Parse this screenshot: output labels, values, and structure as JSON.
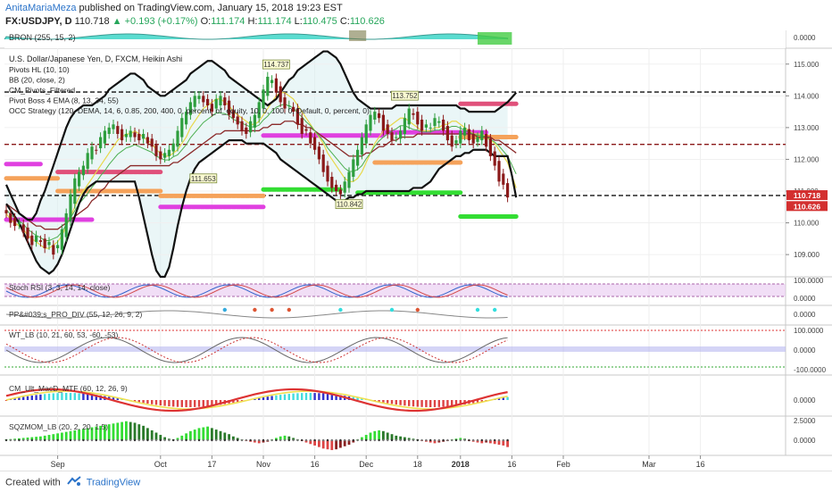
{
  "header": {
    "author": "AnitaMariaMeza",
    "published": "published on TradingView.com, January 15, 2018 19:23 EST",
    "symbol": "FX:USDJPY, D",
    "price": "110.718",
    "change": "+0.193 (+0.17%)",
    "o_label": "O:",
    "o_value": "111.174",
    "h_label": "H:",
    "h_value": "111.174",
    "l_label": "L:",
    "l_value": "110.475",
    "c_label": "C:",
    "c_value": "110.626"
  },
  "footer": {
    "created_with": "Created with",
    "brand": "TradingView"
  },
  "colors": {
    "bull": "#2e9e3e",
    "bear": "#8b1a1a",
    "bb": "#111111",
    "ema_fast": "#e8d84a",
    "ema_mid": "#4caf50",
    "ema_slow": "#8b2a2a",
    "pivot_magenta": "#e040e0",
    "pivot_orange": "#f5a25a",
    "pivot_green": "#33dd33",
    "pivot_pink": "#e0507a",
    "cloud": "#d8eef0",
    "up_box": "#26a65b",
    "down_box": "#d32f2f"
  },
  "chart_data": [
    {
      "type": "candlestick",
      "title": "U.S. Dollar/Japanese Yen, D, FXCM, Heikin Ashi",
      "indicator_labels": [
        "Pivots HL (10, 10)",
        "BB (20, close, 2)",
        "CM_Pivots_Filtered",
        "Pivot Boss 4 EMA (8, 13, 34, 55)",
        "OCC Strategy (120, DEMA, 14, 6, 0.85, 200, 400, 0, percent_of_equity, 10, 0, 100, 0, Default, 0, percent, 0)"
      ],
      "y_ticks": [
        "115.000",
        "114.000",
        "113.000",
        "112.000",
        "111.000",
        "110.000",
        "109.000"
      ],
      "ylim": [
        108.3,
        115.5
      ],
      "x_ticks": [
        "Sep",
        "Oct",
        "17",
        "Nov",
        "16",
        "Dec",
        "18",
        "2018",
        "16",
        "Feb",
        "Mar",
        "16"
      ],
      "x_tick_index": [
        12,
        36,
        48,
        60,
        72,
        84,
        96,
        106,
        118,
        130,
        150,
        162
      ],
      "price_labels": [
        {
          "text": "110.718",
          "value": 110.718,
          "color": "#d32f2f"
        },
        {
          "text": "110.626",
          "value": 110.626,
          "color": "#d32f2f"
        }
      ],
      "annotations": [
        {
          "text": "114.737",
          "index": 63,
          "value": 114.737,
          "pos": "above"
        },
        {
          "text": "113.752",
          "index": 93,
          "value": 113.752,
          "pos": "above"
        },
        {
          "text": "111.653",
          "index": 46,
          "value": 111.653,
          "pos": "below"
        },
        {
          "text": "110.842",
          "index": 80,
          "value": 110.842,
          "pos": "below"
        }
      ],
      "hlines": [
        {
          "value": 114.12,
          "color": "#111111",
          "style": "dash"
        },
        {
          "value": 112.47,
          "color": "#8b1a1a",
          "style": "dash"
        },
        {
          "value": 110.86,
          "color": "#111111",
          "style": "dash"
        }
      ],
      "pivot_segments": [
        {
          "start": 0,
          "end": 8,
          "value": 111.85,
          "color": "#e040e0"
        },
        {
          "start": 0,
          "end": 12,
          "value": 111.4,
          "color": "#f5a25a"
        },
        {
          "start": 12,
          "end": 36,
          "value": 111.6,
          "color": "#e0507a"
        },
        {
          "start": 12,
          "end": 36,
          "value": 111.0,
          "color": "#f5a25a"
        },
        {
          "start": 0,
          "end": 20,
          "value": 110.1,
          "color": "#e040e0"
        },
        {
          "start": 36,
          "end": 60,
          "value": 110.5,
          "color": "#e040e0"
        },
        {
          "start": 36,
          "end": 60,
          "value": 110.85,
          "color": "#f5a25a"
        },
        {
          "start": 60,
          "end": 88,
          "value": 112.75,
          "color": "#e040e0"
        },
        {
          "start": 60,
          "end": 78,
          "value": 111.05,
          "color": "#33dd33"
        },
        {
          "start": 86,
          "end": 106,
          "value": 111.9,
          "color": "#f5a25a"
        },
        {
          "start": 82,
          "end": 106,
          "value": 110.95,
          "color": "#33dd33"
        },
        {
          "start": 88,
          "end": 112,
          "value": 112.85,
          "color": "#e040e0"
        },
        {
          "start": 106,
          "end": 119,
          "value": 113.75,
          "color": "#e0507a"
        },
        {
          "start": 106,
          "end": 119,
          "value": 112.7,
          "color": "#f5a25a"
        },
        {
          "start": 106,
          "end": 119,
          "value": 110.2,
          "color": "#33dd33"
        }
      ],
      "bb_upper": [
        111.2,
        110.9,
        110.6,
        110.3,
        110.2,
        110.1,
        110.1,
        110.3,
        110.7,
        111.0,
        111.4,
        111.8,
        112.2,
        112.6,
        113.0,
        113.3,
        113.5,
        113.6,
        113.7,
        113.7,
        113.7,
        113.8,
        113.9,
        114.0,
        114.2,
        114.3,
        114.4,
        114.5,
        114.6,
        114.7,
        114.7,
        114.6,
        114.5,
        114.3,
        114.2,
        114.1,
        114.0,
        114.0,
        114.1,
        114.2,
        114.3,
        114.4,
        114.5,
        114.7,
        114.8,
        114.9,
        115.0,
        115.1,
        115.1,
        115.0,
        114.9,
        114.8,
        114.6,
        114.5,
        114.4,
        114.3,
        114.2,
        114.1,
        114.0,
        113.9,
        113.8,
        113.7,
        113.8,
        113.9,
        114.1,
        114.3,
        114.5,
        114.6,
        114.8,
        114.9,
        115.0,
        115.1,
        115.2,
        115.3,
        115.4,
        115.4,
        115.3,
        115.2,
        115.0,
        114.7,
        114.4,
        114.1,
        113.9,
        113.8,
        113.7,
        113.6,
        113.6,
        113.6,
        113.6,
        113.6,
        113.6,
        113.7,
        113.7,
        113.7,
        113.7,
        113.7,
        113.7,
        113.7,
        113.7,
        113.7,
        113.7,
        113.7,
        113.7,
        113.7,
        113.7,
        113.7,
        113.6,
        113.6,
        113.5,
        113.5,
        113.5,
        113.5,
        113.5,
        113.5,
        113.5,
        113.6,
        113.7,
        113.8,
        113.95,
        114.1
      ],
      "bb_lower": [
        110.6,
        110.4,
        110.2,
        110.0,
        109.7,
        109.4,
        109.1,
        108.8,
        108.6,
        108.5,
        108.4,
        108.5,
        108.7,
        109.0,
        109.4,
        109.8,
        110.2,
        110.6,
        110.9,
        111.1,
        111.2,
        111.3,
        111.3,
        111.3,
        111.3,
        111.3,
        111.3,
        111.3,
        111.3,
        111.3,
        111.3,
        110.8,
        110.2,
        109.6,
        109.0,
        108.5,
        108.3,
        108.3,
        108.6,
        109.2,
        109.9,
        110.5,
        111.0,
        111.4,
        111.7,
        111.9,
        112.0,
        112.1,
        112.2,
        112.3,
        112.4,
        112.5,
        112.6,
        112.6,
        112.6,
        112.6,
        112.5,
        112.5,
        112.5,
        112.5,
        112.5,
        112.4,
        112.3,
        112.2,
        112.0,
        111.9,
        111.8,
        111.7,
        111.6,
        111.5,
        111.4,
        111.3,
        111.2,
        111.1,
        111.0,
        110.9,
        110.8,
        110.7,
        110.7,
        110.7,
        110.8,
        110.8,
        110.9,
        110.9,
        111.0,
        111.0,
        111.0,
        111.0,
        111.0,
        111.0,
        111.0,
        111.0,
        111.0,
        111.0,
        111.0,
        111.1,
        111.1,
        111.1,
        111.2,
        111.3,
        111.5,
        111.7,
        111.8,
        111.9,
        112.0,
        112.1,
        112.1,
        112.2,
        112.2,
        112.3,
        112.3,
        112.3,
        112.3,
        112.2,
        112.1,
        112.1,
        112.1,
        112.1,
        111.5,
        110.8
      ],
      "ema_fast": [
        110.3,
        110.1,
        110.0,
        109.9,
        109.8,
        109.6,
        109.5,
        109.4,
        109.3,
        109.2,
        109.2,
        109.3,
        109.4,
        109.6,
        109.9,
        110.2,
        110.5,
        110.8,
        111.0,
        111.2,
        111.4,
        111.6,
        111.8,
        112.0,
        112.2,
        112.4,
        112.6,
        112.7,
        112.8,
        112.8,
        112.9,
        112.8,
        112.7,
        112.6,
        112.5,
        112.3,
        112.2,
        112.1,
        112.1,
        112.2,
        112.3,
        112.5,
        112.7,
        113.0,
        113.2,
        113.4,
        113.6,
        113.7,
        113.8,
        113.9,
        113.9,
        113.8,
        113.7,
        113.5,
        113.4,
        113.3,
        113.2,
        113.1,
        113.1,
        113.2,
        113.4,
        113.6,
        113.8,
        114.0,
        114.1,
        114.1,
        114.0,
        113.9,
        113.7,
        113.5,
        113.3,
        113.1,
        112.9,
        112.7,
        112.5,
        112.2,
        112.0,
        111.8,
        111.6,
        111.4,
        111.3,
        111.3,
        111.4,
        111.6,
        111.9,
        112.2,
        112.5,
        112.7,
        112.9,
        113.0,
        113.1,
        113.2,
        113.3,
        113.3,
        113.2,
        113.1,
        113.0,
        112.9,
        112.9,
        112.9,
        113.0,
        113.0,
        113.1,
        113.1,
        113.2,
        113.2,
        113.1,
        113.0,
        112.9,
        112.8,
        112.8,
        112.8,
        112.7,
        112.6,
        112.5,
        112.3,
        112.1,
        111.9,
        111.5,
        111.1
      ],
      "ema_slow": [
        110.6,
        110.5,
        110.4,
        110.3,
        110.2,
        110.1,
        110.0,
        109.9,
        109.9,
        109.8,
        109.8,
        109.8,
        109.8,
        109.9,
        110.0,
        110.1,
        110.2,
        110.3,
        110.4,
        110.5,
        110.7,
        110.8,
        111.0,
        111.1,
        111.3,
        111.4,
        111.5,
        111.6,
        111.7,
        111.8,
        111.8,
        111.8,
        111.8,
        111.8,
        111.8,
        111.8,
        111.8,
        111.8,
        111.8,
        111.9,
        111.9,
        112.0,
        112.1,
        112.2,
        112.3,
        112.4,
        112.5,
        112.6,
        112.7,
        112.8,
        112.8,
        112.9,
        112.9,
        112.9,
        112.9,
        112.9,
        112.9,
        112.9,
        112.9,
        112.9,
        113.0,
        113.0,
        113.1,
        113.1,
        113.1,
        113.2,
        113.2,
        113.2,
        113.1,
        113.1,
        113.0,
        113.0,
        112.9,
        112.8,
        112.7,
        112.6,
        112.5,
        112.4,
        112.3,
        112.2,
        112.1,
        112.1,
        112.1,
        112.1,
        112.2,
        112.2,
        112.3,
        112.4,
        112.4,
        112.5,
        112.6,
        112.6,
        112.7,
        112.7,
        112.7,
        112.7,
        112.8,
        112.8,
        112.8,
        112.8,
        112.8,
        112.8,
        112.8,
        112.8,
        112.8,
        112.8,
        112.8,
        112.8,
        112.8,
        112.8,
        112.7,
        112.7,
        112.7,
        112.7,
        112.6,
        112.6,
        112.5,
        112.4,
        112.3,
        112.2
      ],
      "close": [
        110.3,
        110.0,
        109.9,
        110.0,
        109.7,
        109.5,
        109.3,
        109.6,
        109.4,
        109.2,
        109.4,
        109.0,
        109.3,
        109.8,
        110.3,
        110.9,
        111.4,
        111.6,
        111.8,
        112.2,
        112.4,
        112.3,
        112.7,
        112.9,
        113.0,
        113.1,
        112.8,
        112.6,
        112.8,
        112.9,
        112.7,
        112.6,
        112.8,
        112.5,
        112.4,
        112.1,
        112.0,
        112.2,
        112.3,
        112.5,
        112.9,
        113.3,
        113.5,
        113.8,
        114.0,
        114.0,
        113.8,
        113.7,
        113.5,
        113.9,
        114.0,
        113.7,
        113.4,
        113.3,
        113.1,
        112.9,
        112.8,
        113.2,
        113.4,
        113.8,
        114.2,
        114.6,
        114.5,
        114.1,
        113.8,
        113.6,
        113.7,
        113.5,
        113.1,
        112.8,
        112.9,
        112.5,
        112.3,
        112.0,
        111.6,
        111.3,
        111.1,
        111.0,
        110.9,
        111.3,
        111.6,
        112.0,
        112.3,
        112.7,
        113.1,
        113.4,
        113.5,
        113.3,
        112.9,
        112.8,
        112.6,
        112.7,
        112.9,
        113.3,
        113.6,
        113.4,
        113.1,
        112.9,
        113.1,
        113.0,
        113.3,
        113.2,
        112.9,
        112.6,
        112.4,
        112.6,
        112.9,
        113.0,
        112.6,
        112.5,
        112.7,
        112.9,
        112.4,
        112.1,
        111.8,
        111.3,
        111.2,
        110.8
      ],
      "indicator_panels": [
        {
          "label": "BRON (255, 15, 2)",
          "y_ticks": [
            "0.0000"
          ]
        },
        {
          "label": "Stoch RSI (3, 3, 14, 14, close)",
          "y_ticks": [
            "100.0000",
            "0.0000"
          ]
        },
        {
          "label": "PP&#039;s_PRO_DIV (55, 12, 26, 9, 2)",
          "y_ticks": [
            "0.0000"
          ]
        },
        {
          "label": "WT_LB (10, 21, 60, 53, -60, -53)",
          "y_ticks": [
            "100.0000",
            "0.0000",
            "-100.0000"
          ]
        },
        {
          "label": "CM_Ult_MacD_MTF (60, 12, 26, 9)",
          "y_ticks": [
            "0.0000"
          ]
        },
        {
          "label": "SQZMOM_LB (20, 2, 20, 1.5)",
          "y_ticks": [
            "2.5000",
            "0.0000"
          ]
        }
      ],
      "sqz_values": [
        0.1,
        0.15,
        0.2,
        0.25,
        0.3,
        0.35,
        0.4,
        0.45,
        0.5,
        0.6,
        0.7,
        0.8,
        0.9,
        1.0,
        1.1,
        1.2,
        1.3,
        1.4,
        1.5,
        1.6,
        1.7,
        1.8,
        1.9,
        2.0,
        2.1,
        2.2,
        2.3,
        2.4,
        2.5,
        2.4,
        2.3,
        2.1,
        1.9,
        1.6,
        1.3,
        1.0,
        0.7,
        0.4,
        0.2,
        0.1,
        0.3,
        0.6,
        0.9,
        1.2,
        1.4,
        1.6,
        1.7,
        1.8,
        1.6,
        1.4,
        1.2,
        1.0,
        0.8,
        0.5,
        0.3,
        0.1,
        -0.1,
        -0.2,
        -0.3,
        -0.4,
        -0.3,
        -0.2,
        0.1,
        0.3,
        0.5,
        0.6,
        0.5,
        0.3,
        0.1,
        -0.1,
        -0.3,
        -0.5,
        -0.7,
        -0.9,
        -1.1,
        -1.2,
        -1.3,
        -1.2,
        -1.0,
        -0.8,
        -0.6,
        -0.3,
        0.1,
        0.4,
        0.7,
        1.0,
        1.2,
        1.3,
        1.2,
        1.0,
        0.8,
        0.6,
        0.5,
        0.4,
        0.3,
        0.2,
        0.1,
        -0.1,
        -0.2,
        -0.3,
        -0.4,
        -0.3,
        -0.2,
        -0.1,
        0.1,
        0.2,
        0.3,
        0.2,
        -0.1,
        -0.2,
        -0.3,
        -0.4,
        -0.3,
        -0.4,
        -0.5,
        -0.6,
        -0.7,
        -0.9
      ]
    }
  ]
}
